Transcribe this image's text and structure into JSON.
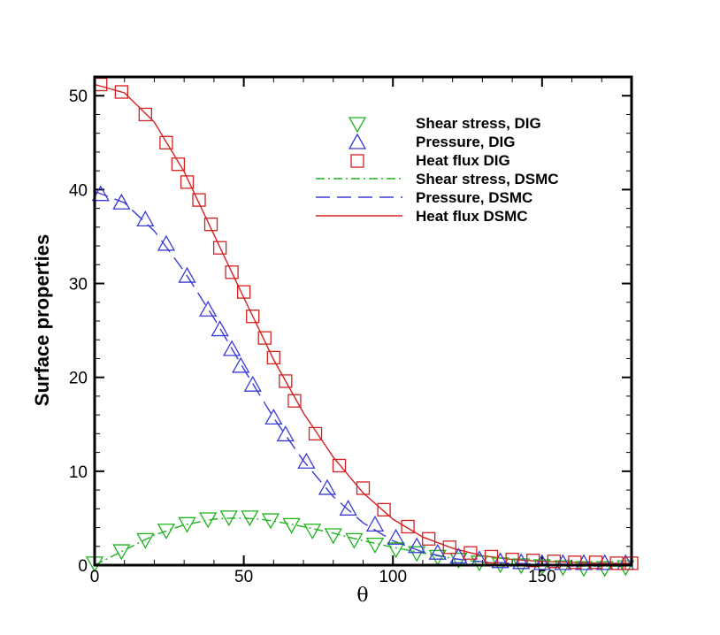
{
  "chart_data": {
    "type": "line",
    "title": "",
    "xlabel": "θ",
    "ylabel": "Surface properties",
    "xlim": [
      0,
      180
    ],
    "ylim": [
      0,
      52
    ],
    "xticks": [
      0,
      50,
      100,
      150
    ],
    "yticks": [
      0,
      10,
      20,
      30,
      40,
      50
    ],
    "x_minor_step": 10,
    "y_minor_step": 2,
    "grid": false,
    "legend_position": "top-right",
    "series": [
      {
        "name": "Shear stress, DIG",
        "kind": "marker",
        "marker": "triangle-down",
        "color": "#1fb21f",
        "points": [
          [
            0,
            0.2
          ],
          [
            9,
            1.5
          ],
          [
            17,
            2.7
          ],
          [
            24,
            3.7
          ],
          [
            31,
            4.4
          ],
          [
            38,
            4.9
          ],
          [
            45,
            5.1
          ],
          [
            52,
            5.1
          ],
          [
            59,
            4.8
          ],
          [
            66,
            4.3
          ],
          [
            73,
            3.7
          ],
          [
            80,
            3.2
          ],
          [
            87,
            2.7
          ],
          [
            94,
            2.2
          ],
          [
            101,
            1.7
          ],
          [
            108,
            1.3
          ],
          [
            115,
            0.9
          ],
          [
            122,
            0.6
          ],
          [
            129,
            0.3
          ],
          [
            136,
            0.1
          ],
          [
            143,
            0
          ],
          [
            150,
            -0.1
          ],
          [
            157,
            -0.2
          ],
          [
            164,
            -0.3
          ],
          [
            171,
            -0.3
          ],
          [
            178,
            -0.2
          ]
        ]
      },
      {
        "name": "Pressure, DIG",
        "kind": "marker",
        "marker": "triangle-up",
        "color": "#3a3ad8",
        "points": [
          [
            2,
            39.5
          ],
          [
            9,
            38.6
          ],
          [
            17,
            36.8
          ],
          [
            24,
            34.2
          ],
          [
            31,
            30.8
          ],
          [
            38,
            27.2
          ],
          [
            42,
            25.1
          ],
          [
            46,
            23.0
          ],
          [
            49,
            21.2
          ],
          [
            53,
            19.2
          ],
          [
            60,
            15.7
          ],
          [
            64,
            13.9
          ],
          [
            71,
            11.0
          ],
          [
            78,
            8.2
          ],
          [
            85,
            6.0
          ],
          [
            94,
            4.3
          ],
          [
            101,
            2.9
          ],
          [
            108,
            2.0
          ],
          [
            115,
            1.3
          ],
          [
            122,
            0.9
          ],
          [
            129,
            0.6
          ],
          [
            136,
            0.4
          ],
          [
            143,
            0.3
          ],
          [
            150,
            0.2
          ],
          [
            157,
            0.2
          ],
          [
            164,
            0.2
          ],
          [
            171,
            0.2
          ],
          [
            178,
            0.2
          ]
        ]
      },
      {
        "name": "Heat flux DIG",
        "kind": "marker",
        "marker": "square",
        "color": "#d42020",
        "points": [
          [
            2,
            51.2
          ],
          [
            9,
            50.4
          ],
          [
            17,
            48.0
          ],
          [
            24,
            45.0
          ],
          [
            28,
            42.7
          ],
          [
            31,
            40.8
          ],
          [
            35,
            38.9
          ],
          [
            39,
            36.3
          ],
          [
            42,
            33.8
          ],
          [
            46,
            31.2
          ],
          [
            50,
            29.1
          ],
          [
            53,
            26.5
          ],
          [
            57,
            24.2
          ],
          [
            60,
            22.1
          ],
          [
            64,
            19.6
          ],
          [
            67,
            17.5
          ],
          [
            74,
            14.0
          ],
          [
            82,
            10.6
          ],
          [
            90,
            8.2
          ],
          [
            97,
            5.9
          ],
          [
            105,
            4.1
          ],
          [
            112,
            2.8
          ],
          [
            119,
            1.9
          ],
          [
            126,
            1.3
          ],
          [
            133,
            0.9
          ],
          [
            140,
            0.6
          ],
          [
            147,
            0.5
          ],
          [
            154,
            0.4
          ],
          [
            161,
            0.3
          ],
          [
            168,
            0.3
          ],
          [
            175,
            0.2
          ],
          [
            180,
            0.2
          ]
        ]
      },
      {
        "name": "Shear stress, DSMC",
        "kind": "line",
        "dash": "dashdot",
        "color": "#1fb21f",
        "points": [
          [
            0,
            0
          ],
          [
            10,
            1.6
          ],
          [
            20,
            3.2
          ],
          [
            30,
            4.3
          ],
          [
            40,
            4.9
          ],
          [
            45,
            5.0
          ],
          [
            50,
            5.0
          ],
          [
            55,
            4.9
          ],
          [
            60,
            4.7
          ],
          [
            70,
            4.1
          ],
          [
            80,
            3.4
          ],
          [
            90,
            2.6
          ],
          [
            100,
            1.9
          ],
          [
            110,
            1.3
          ],
          [
            120,
            0.7
          ],
          [
            130,
            0.3
          ],
          [
            140,
            0.1
          ],
          [
            150,
            0
          ],
          [
            160,
            -0.1
          ],
          [
            170,
            -0.1
          ],
          [
            180,
            -0.1
          ]
        ]
      },
      {
        "name": "Pressure, DSMC",
        "kind": "line",
        "dash": "dash",
        "color": "#3a3ad8",
        "points": [
          [
            0,
            39.8
          ],
          [
            10,
            38.6
          ],
          [
            20,
            35.6
          ],
          [
            30,
            31.3
          ],
          [
            40,
            26.3
          ],
          [
            50,
            20.9
          ],
          [
            60,
            15.7
          ],
          [
            70,
            11.1
          ],
          [
            80,
            7.3
          ],
          [
            90,
            4.5
          ],
          [
            100,
            2.6
          ],
          [
            110,
            1.4
          ],
          [
            120,
            0.7
          ],
          [
            130,
            0.35
          ],
          [
            140,
            0.2
          ],
          [
            150,
            0.1
          ],
          [
            160,
            0.1
          ],
          [
            170,
            0.1
          ],
          [
            180,
            0.1
          ]
        ]
      },
      {
        "name": "Heat flux DSMC",
        "kind": "line",
        "dash": "solid",
        "color": "#d42020",
        "points": [
          [
            0,
            51.2
          ],
          [
            10,
            50.3
          ],
          [
            20,
            47.2
          ],
          [
            30,
            41.9
          ],
          [
            40,
            35.2
          ],
          [
            50,
            28.5
          ],
          [
            60,
            21.9
          ],
          [
            70,
            16.2
          ],
          [
            80,
            11.5
          ],
          [
            90,
            7.7
          ],
          [
            100,
            4.9
          ],
          [
            110,
            3.0
          ],
          [
            120,
            1.8
          ],
          [
            130,
            1.0
          ],
          [
            140,
            0.6
          ],
          [
            150,
            0.4
          ],
          [
            160,
            0.3
          ],
          [
            170,
            0.2
          ],
          [
            180,
            0.2
          ]
        ]
      }
    ]
  }
}
